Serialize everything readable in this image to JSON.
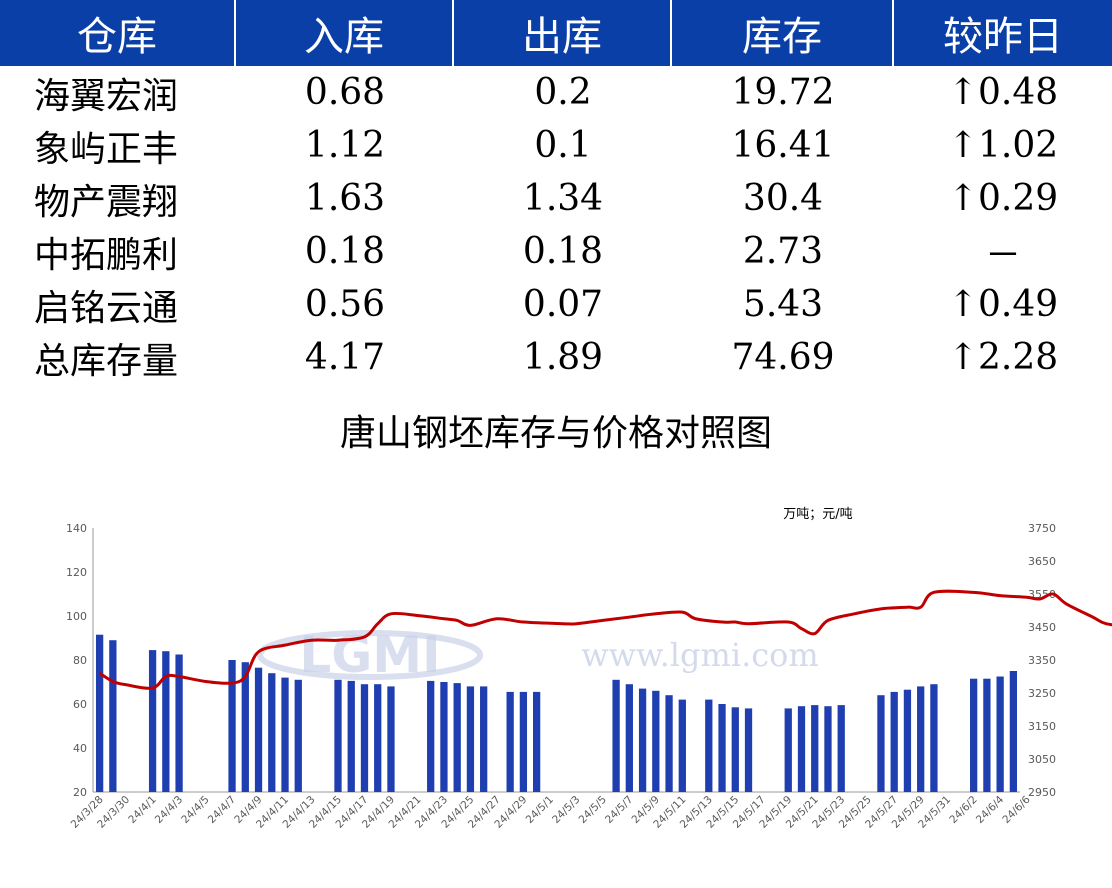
{
  "table": {
    "headers": [
      "仓库",
      "入库",
      "出库",
      "库存",
      "较昨日"
    ],
    "rows": [
      {
        "name": "海翼宏润",
        "in": "0.68",
        "out": "0.2",
        "stock": "19.72",
        "change": "↑0.48"
      },
      {
        "name": "象屿正丰",
        "in": "1.12",
        "out": "0.1",
        "stock": "16.41",
        "change": "↑1.02"
      },
      {
        "name": "物产震翔",
        "in": "1.63",
        "out": "1.34",
        "stock": "30.4",
        "change": "↑0.29"
      },
      {
        "name": "中拓鹏利",
        "in": "0.18",
        "out": "0.18",
        "stock": "2.73",
        "change": "－"
      },
      {
        "name": "启铭云通",
        "in": "0.56",
        "out": "0.07",
        "stock": "5.43",
        "change": "↑0.49"
      },
      {
        "name": "总库存量",
        "in": "4.17",
        "out": "1.89",
        "stock": "74.69",
        "change": "↑2.28"
      }
    ]
  },
  "colors": {
    "header_bg": "#0a3fa8",
    "up": "#e00000",
    "bar": "#1f3fb0",
    "line": "#c00000",
    "watermark": "#c9d2e8"
  },
  "watermark": {
    "logo": "LGMI",
    "url": "www.lgmi.com"
  },
  "chart_data": {
    "type": "bar",
    "title": "唐山钢坯库存与价格对照图",
    "unit_label": "万吨；元/吨",
    "ylim": [
      20,
      140
    ],
    "y_ticks": [
      20,
      40,
      60,
      80,
      100,
      120,
      140
    ],
    "y2lim": [
      2950,
      3750
    ],
    "y2_ticks": [
      2950,
      3050,
      3150,
      3250,
      3350,
      3450,
      3550,
      3650,
      3750
    ],
    "grid": false,
    "x_tick_labels": [
      "24/3/28",
      "24/3/30",
      "24/4/1",
      "24/4/3",
      "24/4/5",
      "24/4/7",
      "24/4/9",
      "24/4/11",
      "24/4/13",
      "24/4/15",
      "24/4/17",
      "24/4/19",
      "24/4/21",
      "24/4/23",
      "24/4/25",
      "24/4/27",
      "24/4/29",
      "24/5/1",
      "24/5/3",
      "24/5/5",
      "24/5/7",
      "24/5/9",
      "24/5/11",
      "24/5/13",
      "24/5/15",
      "24/5/17",
      "24/5/19",
      "24/5/21",
      "24/5/23",
      "24/5/25",
      "24/5/27",
      "24/5/29",
      "24/5/31",
      "24/6/2",
      "24/6/4",
      "24/6/6"
    ],
    "series": [
      {
        "kind": "bar",
        "axis": "left",
        "values": [
          91.5,
          89,
          null,
          null,
          84.5,
          84,
          82.5,
          null,
          null,
          null,
          80,
          79,
          76.5,
          74,
          72,
          71,
          null,
          null,
          71,
          70.5,
          69,
          69,
          68,
          null,
          null,
          70.5,
          70,
          69.5,
          68,
          68,
          null,
          65.5,
          65.5,
          65.5,
          null,
          null,
          null,
          null,
          null,
          71,
          69,
          67,
          66,
          64,
          62,
          null,
          62,
          60,
          58.5,
          58,
          null,
          null,
          58,
          59,
          59.5,
          59,
          59.5,
          null,
          null,
          64,
          65.5,
          66.5,
          68,
          69,
          null,
          null,
          71.5,
          71.5,
          72.5,
          75
        ]
      },
      {
        "kind": "line",
        "axis": "right",
        "points": [
          [
            0,
            3310
          ],
          [
            1,
            3285
          ],
          [
            2,
            3275
          ],
          [
            4,
            3265
          ],
          [
            5,
            3300
          ],
          [
            6,
            3300
          ],
          [
            8,
            3285
          ],
          [
            10,
            3280
          ],
          [
            11,
            3300
          ],
          [
            12,
            3375
          ],
          [
            14,
            3395
          ],
          [
            16,
            3410
          ],
          [
            18,
            3410
          ],
          [
            20,
            3420
          ],
          [
            21,
            3460
          ],
          [
            22,
            3490
          ],
          [
            24,
            3485
          ],
          [
            26,
            3475
          ],
          [
            27,
            3470
          ],
          [
            28,
            3455
          ],
          [
            30,
            3475
          ],
          [
            32,
            3465
          ],
          [
            35,
            3460
          ],
          [
            36,
            3460
          ],
          [
            38,
            3470
          ],
          [
            40,
            3480
          ],
          [
            42,
            3490
          ],
          [
            44,
            3495
          ],
          [
            45,
            3475
          ],
          [
            47,
            3465
          ],
          [
            48,
            3465
          ],
          [
            49,
            3460
          ],
          [
            52,
            3465
          ],
          [
            53,
            3445
          ],
          [
            54,
            3430
          ],
          [
            55,
            3470
          ],
          [
            57,
            3490
          ],
          [
            59,
            3505
          ],
          [
            61,
            3510
          ],
          [
            62,
            3510
          ],
          [
            63,
            3555
          ],
          [
            66,
            3555
          ],
          [
            68,
            3545
          ],
          [
            70,
            3540
          ],
          [
            71,
            3535
          ],
          [
            72,
            3550
          ],
          [
            73,
            3520
          ],
          [
            75,
            3480
          ],
          [
            76,
            3460
          ],
          [
            78,
            3450
          ],
          [
            79,
            3445
          ],
          [
            80,
            3440
          ]
        ]
      }
    ]
  }
}
